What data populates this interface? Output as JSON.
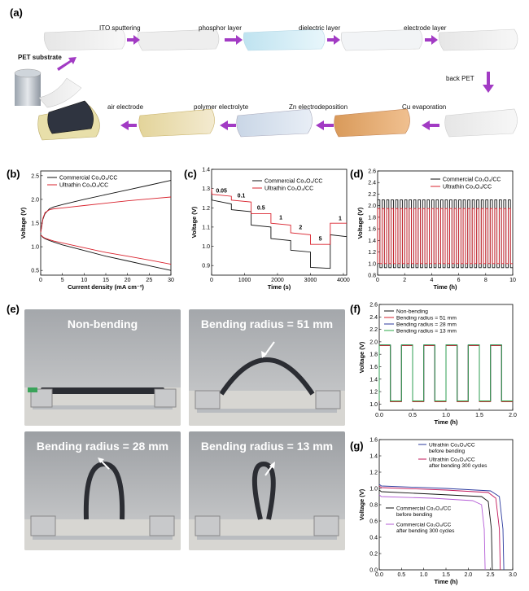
{
  "panel_a": {
    "letter": "(a)",
    "steps_row1": [
      "PET substrate",
      "ITO sputtering",
      "phosphor layer",
      "dielectric layer",
      "electrode layer"
    ],
    "step_right": "back PET",
    "steps_row2": [
      "air electrode",
      "polymer electrolyte",
      "Zn electrodeposition",
      "Cu evaporation"
    ]
  },
  "panel_e": {
    "letter": "(e)",
    "photos": [
      "Non-bending",
      "Bending radius = 51 mm",
      "Bending radius = 28 mm",
      "Bending radius = 13 mm"
    ]
  },
  "colors": {
    "black_series": "#111111",
    "red_series": "#d9232e",
    "blue_series": "#2b3a9e",
    "purple_series": "#8a4fb0",
    "magenta_series": "#c1175a",
    "violet_series": "#b45cd6",
    "green_series": "#2eaa4a",
    "arrow": "#a23bc4"
  },
  "chart_data": [
    {
      "panel": "(b)",
      "type": "line",
      "xlabel": "Current density (mA cm⁻²)",
      "ylabel": "Voltage (V)",
      "xlim": [
        0,
        30
      ],
      "ylim": [
        0.4,
        2.6
      ],
      "xticks": [
        "0",
        "5",
        "10",
        "15",
        "20",
        "25",
        "30"
      ],
      "yticks": [
        "0.5",
        "1.0",
        "1.5",
        "2.0",
        "2.5"
      ],
      "legend": "top-left",
      "series": [
        {
          "name": "Commercial Co₃O₄/CC",
          "color": "#111111",
          "x": [
            0,
            0.5,
            1,
            2,
            3,
            5,
            10,
            15,
            20,
            25,
            30
          ],
          "y": [
            1.3,
            1.58,
            1.7,
            1.8,
            1.84,
            1.89,
            2.0,
            2.1,
            2.2,
            2.3,
            2.4
          ]
        },
        {
          "name": "Commercial Co₃O₄/CC",
          "color": "#111111",
          "x": [
            0,
            0.5,
            1,
            2,
            3,
            5,
            10,
            15,
            20,
            25,
            30
          ],
          "y": [
            1.25,
            1.2,
            1.17,
            1.13,
            1.1,
            1.04,
            0.92,
            0.8,
            0.7,
            0.6,
            0.5
          ]
        },
        {
          "name": "Ultrathin Co₃O₄/CC",
          "color": "#d9232e",
          "x": [
            0,
            0.5,
            1,
            2,
            3,
            5,
            10,
            15,
            20,
            25,
            30
          ],
          "y": [
            1.3,
            1.6,
            1.72,
            1.78,
            1.8,
            1.82,
            1.87,
            1.92,
            1.97,
            2.01,
            2.05
          ]
        },
        {
          "name": "Ultrathin Co₃O₄/CC",
          "color": "#d9232e",
          "x": [
            0,
            0.5,
            1,
            2,
            3,
            5,
            10,
            15,
            20,
            25,
            30
          ],
          "y": [
            1.25,
            1.21,
            1.18,
            1.15,
            1.12,
            1.08,
            0.98,
            0.88,
            0.8,
            0.72,
            0.63
          ]
        }
      ]
    },
    {
      "panel": "(c)",
      "type": "line",
      "xlabel": "Time (s)",
      "ylabel": "Voltage (V)",
      "xlim": [
        0,
        4100
      ],
      "ylim": [
        0.85,
        1.4
      ],
      "xticks": [
        "0",
        "1000",
        "2000",
        "3000",
        "4000"
      ],
      "yticks": [
        "0.9",
        "1.0",
        "1.1",
        "1.2",
        "1.3",
        "1.4"
      ],
      "legend": "top-right",
      "step_labels": [
        "0.05",
        "0.1",
        "0.5",
        "1",
        "2",
        "5",
        "1"
      ],
      "series": [
        {
          "name": "Commercial Co₃O₄/CC",
          "color": "#111111",
          "x": [
            0,
            10,
            600,
            600,
            1200,
            1200,
            1800,
            1800,
            2400,
            2400,
            3000,
            3000,
            3600,
            3600,
            4100
          ],
          "y": [
            1.3,
            1.24,
            1.22,
            1.19,
            1.18,
            1.11,
            1.1,
            1.04,
            1.03,
            0.98,
            0.97,
            0.89,
            0.885,
            1.06,
            1.05
          ]
        },
        {
          "name": "Ultrathin Co₃O₄/CC",
          "color": "#d9232e",
          "x": [
            0,
            10,
            600,
            600,
            1200,
            1200,
            1800,
            1800,
            2400,
            2400,
            3000,
            3000,
            3600,
            3600,
            4100
          ],
          "y": [
            1.3,
            1.27,
            1.26,
            1.24,
            1.23,
            1.17,
            1.17,
            1.12,
            1.11,
            1.07,
            1.06,
            1.01,
            1.01,
            1.12,
            1.12
          ]
        }
      ]
    },
    {
      "panel": "(d)",
      "type": "line",
      "xlabel": "Time (h)",
      "ylabel": "Voltage (V)",
      "xlim": [
        0,
        10
      ],
      "ylim": [
        0.8,
        2.6
      ],
      "xticks": [
        "0",
        "2",
        "4",
        "6",
        "8",
        "10"
      ],
      "yticks": [
        "0.8",
        "1.0",
        "1.2",
        "1.4",
        "1.6",
        "1.8",
        "2.0",
        "2.2",
        "2.4",
        "2.6"
      ],
      "legend": "top-right",
      "cycles": 30,
      "series": [
        {
          "name": "Commercial Co₃O₄/CC",
          "color": "#111111",
          "charge_v": 2.1,
          "discharge_v": 0.93
        },
        {
          "name": "Ultrathin Co₃O₄/CC",
          "color": "#d9232e",
          "charge_v": 1.95,
          "discharge_v": 1.0
        }
      ]
    },
    {
      "panel": "(f)",
      "type": "line",
      "xlabel": "Time (h)",
      "ylabel": "Voltage (V)",
      "xlim": [
        0,
        2.0
      ],
      "ylim": [
        0.9,
        2.6
      ],
      "xticks": [
        "0.0",
        "0.5",
        "1.0",
        "1.5",
        "2.0"
      ],
      "yticks": [
        "1.0",
        "1.2",
        "1.4",
        "1.6",
        "1.8",
        "2.0",
        "2.2",
        "2.4",
        "2.6"
      ],
      "legend": "top-left",
      "cycles": 6,
      "series": [
        {
          "name": "Non-bending",
          "color": "#111111",
          "charge_v": 1.94,
          "discharge_v": 1.04
        },
        {
          "name": "Bending radius = 51 mm",
          "color": "#d9232e",
          "charge_v": 1.94,
          "discharge_v": 1.04
        },
        {
          "name": "Bending radius = 28 mm",
          "color": "#2b3a9e",
          "charge_v": 1.95,
          "discharge_v": 1.05
        },
        {
          "name": "Bending radius = 13 mm",
          "color": "#2eaa4a",
          "charge_v": 1.95,
          "discharge_v": 1.05
        }
      ]
    },
    {
      "panel": "(g)",
      "type": "line",
      "xlabel": "Time (h)",
      "ylabel": "Voltage (V)",
      "xlim": [
        0,
        3.0
      ],
      "ylim": [
        0,
        1.6
      ],
      "xticks": [
        "0.0",
        "0.5",
        "1.0",
        "1.5",
        "2.0",
        "2.5",
        "3.0"
      ],
      "yticks": [
        "0.0",
        "0.2",
        "0.4",
        "0.6",
        "0.8",
        "1.0",
        "1.2",
        "1.4",
        "1.6"
      ],
      "series": [
        {
          "name": "Ultrathin Co₃O₄/CC before bending",
          "color": "#2b3a9e",
          "x": [
            0,
            0.05,
            1.5,
            2.5,
            2.7,
            2.78,
            2.8
          ],
          "y": [
            1.05,
            1.03,
            1.0,
            0.97,
            0.9,
            0.5,
            0.0
          ]
        },
        {
          "name": "Ultrathin Co₃O₄/CC after bending 300 cycles",
          "color": "#c1175a",
          "x": [
            0,
            0.05,
            1.5,
            2.45,
            2.62,
            2.7,
            2.72
          ],
          "y": [
            1.03,
            1.01,
            0.98,
            0.95,
            0.88,
            0.5,
            0.0
          ]
        },
        {
          "name": "Commercial Co₃O₄/CC before bending",
          "color": "#111111",
          "x": [
            0,
            0.05,
            1.2,
            2.3,
            2.45,
            2.52,
            2.54
          ],
          "y": [
            0.98,
            0.96,
            0.93,
            0.9,
            0.84,
            0.5,
            0.0
          ]
        },
        {
          "name": "Commercial Co₃O₄/CC after bending 300 cycles",
          "color": "#b45cd6",
          "x": [
            0,
            0.05,
            1.2,
            2.1,
            2.3,
            2.36,
            2.38
          ],
          "y": [
            0.92,
            0.9,
            0.88,
            0.85,
            0.8,
            0.5,
            0.0
          ]
        }
      ]
    }
  ]
}
